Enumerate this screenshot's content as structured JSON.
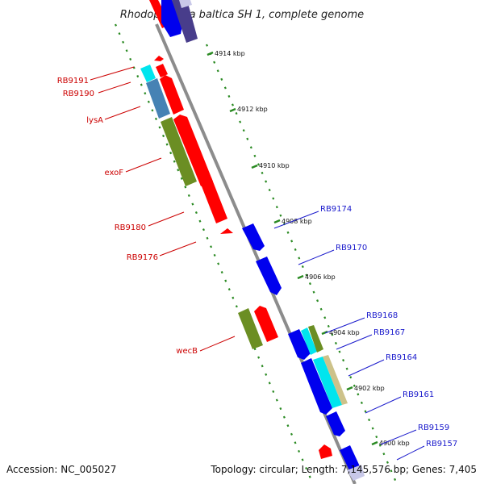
{
  "title": "Rhodopirellula baltica SH 1, complete genome",
  "footer": {
    "accession": "Accession: NC_005027",
    "topology": "Topology: circular; Length: 7,145,576 bp; Genes: 7,405"
  },
  "colors": {
    "backbone": "#8c8c8c",
    "tick_ring": "#2a8a22",
    "left_label": "#cc0000",
    "right_label": "#1a1acc",
    "gene_red": "#ff0000",
    "gene_blue": "#0000ee",
    "gene_olive": "#6b8e23",
    "gene_cyan": "#00e5ee",
    "gene_steelblue": "#4682b4",
    "gene_tan": "#cdc28a",
    "gene_slate": "#483d8b"
  },
  "kbp_marks": [
    "4914 kbp",
    "4912 kbp",
    "4910 kbp",
    "4908 kbp",
    "4906 kbp",
    "4904 kbp",
    "4902 kbp",
    "4900 kbp"
  ],
  "left_labels": [
    "RB9191",
    "RB9190",
    "lysA",
    "exoF",
    "RB9180",
    "RB9176",
    "wecB"
  ],
  "right_labels": [
    "RB9174",
    "RB9170",
    "RB9168",
    "RB9167",
    "RB9164",
    "RB9161",
    "RB9159",
    "RB9157"
  ]
}
